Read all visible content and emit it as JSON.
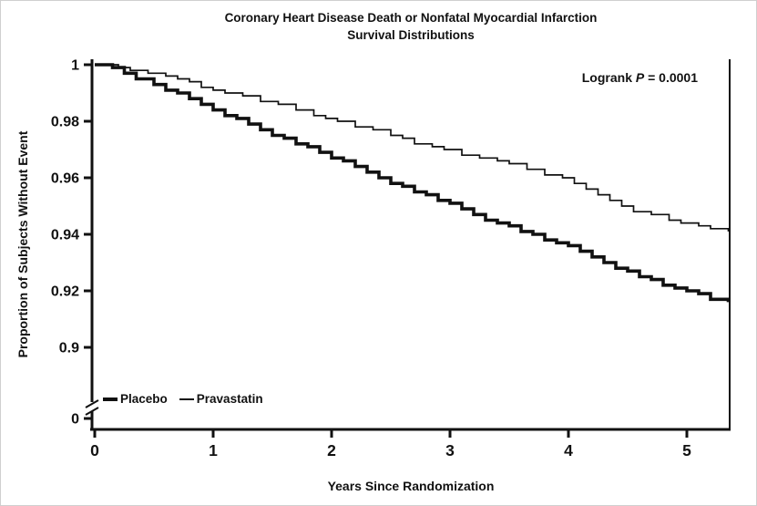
{
  "annotation": {
    "prefix": "Logrank ",
    "p_symbol": "P",
    "suffix": " = 0.0001"
  },
  "chart_data": {
    "type": "line",
    "subtype": "kaplan-meier-survival-step",
    "title": "Coronary Heart Disease Death or Nonfatal Myocardial Infarction",
    "subtitle": "Survival Distributions",
    "xlabel": "Years Since Randomization",
    "ylabel": "Proportion of Subjects Without Event",
    "annotation": "Logrank P = 0.0001",
    "xlim": [
      0,
      5.5
    ],
    "ylim": [
      0.9,
      1.0
    ],
    "y_axis_break": true,
    "grid": false,
    "legend_position": "bottom-left-inside",
    "xticks": [
      0,
      1,
      2,
      3,
      4,
      5
    ],
    "yticks": [
      1,
      0.98,
      0.96,
      0.94,
      0.92,
      0.9,
      0
    ],
    "ytick_labels": [
      "1",
      "0.98",
      "0.96",
      "0.94",
      "0.92",
      "0.9",
      "0"
    ],
    "series": [
      {
        "name": "Placebo",
        "weight": "thick",
        "color": "#111111",
        "points": [
          [
            0,
            1.0
          ],
          [
            0.15,
            0.999
          ],
          [
            0.25,
            0.997
          ],
          [
            0.35,
            0.995
          ],
          [
            0.5,
            0.993
          ],
          [
            0.6,
            0.991
          ],
          [
            0.7,
            0.99
          ],
          [
            0.8,
            0.988
          ],
          [
            0.9,
            0.986
          ],
          [
            1.0,
            0.984
          ],
          [
            1.1,
            0.982
          ],
          [
            1.2,
            0.981
          ],
          [
            1.3,
            0.979
          ],
          [
            1.4,
            0.977
          ],
          [
            1.5,
            0.975
          ],
          [
            1.6,
            0.974
          ],
          [
            1.7,
            0.972
          ],
          [
            1.8,
            0.971
          ],
          [
            1.9,
            0.969
          ],
          [
            2.0,
            0.967
          ],
          [
            2.1,
            0.966
          ],
          [
            2.2,
            0.964
          ],
          [
            2.3,
            0.962
          ],
          [
            2.4,
            0.96
          ],
          [
            2.5,
            0.958
          ],
          [
            2.6,
            0.957
          ],
          [
            2.7,
            0.955
          ],
          [
            2.8,
            0.954
          ],
          [
            2.9,
            0.952
          ],
          [
            3.0,
            0.951
          ],
          [
            3.1,
            0.949
          ],
          [
            3.2,
            0.947
          ],
          [
            3.3,
            0.945
          ],
          [
            3.4,
            0.944
          ],
          [
            3.5,
            0.943
          ],
          [
            3.6,
            0.941
          ],
          [
            3.7,
            0.94
          ],
          [
            3.8,
            0.938
          ],
          [
            3.9,
            0.937
          ],
          [
            4.0,
            0.936
          ],
          [
            4.1,
            0.934
          ],
          [
            4.2,
            0.932
          ],
          [
            4.3,
            0.93
          ],
          [
            4.4,
            0.928
          ],
          [
            4.5,
            0.927
          ],
          [
            4.6,
            0.925
          ],
          [
            4.7,
            0.924
          ],
          [
            4.8,
            0.922
          ],
          [
            4.9,
            0.921
          ],
          [
            5.0,
            0.92
          ],
          [
            5.1,
            0.919
          ],
          [
            5.2,
            0.917
          ],
          [
            5.35,
            0.916
          ]
        ]
      },
      {
        "name": "Pravastatin",
        "weight": "thin",
        "color": "#111111",
        "points": [
          [
            0,
            1.0
          ],
          [
            0.2,
            0.999
          ],
          [
            0.3,
            0.998
          ],
          [
            0.45,
            0.997
          ],
          [
            0.6,
            0.996
          ],
          [
            0.7,
            0.995
          ],
          [
            0.8,
            0.994
          ],
          [
            0.9,
            0.992
          ],
          [
            1.0,
            0.991
          ],
          [
            1.1,
            0.99
          ],
          [
            1.25,
            0.989
          ],
          [
            1.4,
            0.987
          ],
          [
            1.55,
            0.986
          ],
          [
            1.7,
            0.984
          ],
          [
            1.85,
            0.982
          ],
          [
            1.95,
            0.981
          ],
          [
            2.05,
            0.98
          ],
          [
            2.2,
            0.978
          ],
          [
            2.35,
            0.977
          ],
          [
            2.5,
            0.975
          ],
          [
            2.6,
            0.974
          ],
          [
            2.7,
            0.972
          ],
          [
            2.85,
            0.971
          ],
          [
            2.95,
            0.97
          ],
          [
            3.1,
            0.968
          ],
          [
            3.25,
            0.967
          ],
          [
            3.4,
            0.966
          ],
          [
            3.5,
            0.965
          ],
          [
            3.65,
            0.963
          ],
          [
            3.8,
            0.961
          ],
          [
            3.95,
            0.96
          ],
          [
            4.05,
            0.958
          ],
          [
            4.15,
            0.956
          ],
          [
            4.25,
            0.954
          ],
          [
            4.35,
            0.952
          ],
          [
            4.45,
            0.95
          ],
          [
            4.55,
            0.948
          ],
          [
            4.7,
            0.947
          ],
          [
            4.85,
            0.945
          ],
          [
            4.95,
            0.944
          ],
          [
            5.1,
            0.943
          ],
          [
            5.2,
            0.942
          ],
          [
            5.35,
            0.941
          ]
        ]
      }
    ]
  }
}
